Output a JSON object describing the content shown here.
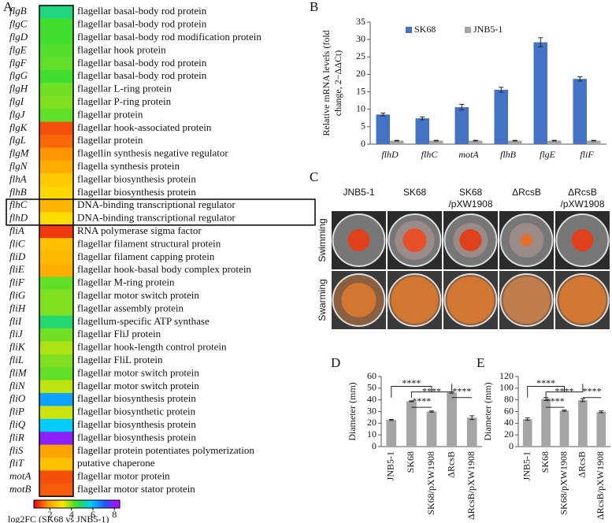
{
  "chart_data": [
    {
      "panel": "A",
      "type": "heatmap",
      "categories": [
        "flgB",
        "flgC",
        "flgD",
        "flgE",
        "flgF",
        "flgG",
        "flgH",
        "flgI",
        "flgJ",
        "flgK",
        "flgL",
        "flgM",
        "flgN",
        "flhA",
        "flhB",
        "flhC",
        "flhD",
        "fliA",
        "fliC",
        "fliD",
        "fliE",
        "fliF",
        "fliG",
        "fliH",
        "fliI",
        "fliJ",
        "fliK",
        "fliL",
        "fliM",
        "fliN",
        "fliO",
        "fliP",
        "fliQ",
        "fliR",
        "fliS",
        "fliT",
        "motA",
        "motB"
      ],
      "descriptions": [
        "flagellar basal-body rod protein",
        "flagellar basal-body rod protein",
        "flagellar basal-body rod modification protein",
        "flagellar hook protein",
        "flagellar basal-body rod protein",
        "flagellar basal-body rod protein",
        "flagellar L-ring protein",
        "flagellar P-ring protein",
        "flagellar protein",
        "flagellar hook-associated protein",
        "flagellar protein",
        "flagellin synthesis negative regulator",
        "flagella synthesis protein",
        "flagellar biosynthesis protein",
        "flagellar biosynthesis protein",
        "DNA-binding transcriptional regulator",
        "DNA-binding transcriptional regulator",
        "RNA polymerase sigma factor",
        "flagellar filament structural protein",
        "flagellar filament capping protein",
        "flagellar hook-basal body complex protein",
        "flagellar M-ring protein",
        "flagellar motor switch protein",
        "flagellar assembly protein",
        "flagellum-specific ATP synthase",
        "flagellar FliJ protein",
        "flagellar hook-length control protein",
        "flagellar FliL protein",
        "flagellar motor switch protein",
        "flagellar motor switch protein",
        "flagellar biosynthesis protein",
        "flagellar biosynthetic protein",
        "flagellar biosynthesis protein",
        "flagellar biosynthesis protein",
        "flagellar protein potentiates polymerization",
        "putative chaperone",
        "flagellar motor protein",
        "flagellar motor stator protein"
      ],
      "values": [
        5.0,
        4.4,
        4.4,
        4.3,
        4.2,
        4.4,
        4.1,
        4.0,
        4.2,
        1.2,
        1.4,
        1.8,
        2.2,
        2.7,
        2.9,
        2.3,
        3.0,
        1.0,
        2.5,
        2.4,
        2.2,
        4.2,
        4.0,
        4.0,
        4.9,
        4.1,
        3.7,
        4.0,
        4.2,
        3.6,
        6.3,
        3.5,
        5.8,
        8.0,
        2.0,
        2.5,
        1.2,
        1.3
      ],
      "colormap": [
        "#e8001a",
        "#ff9900",
        "#ffe600",
        "#33dd33",
        "#00ccff",
        "#2255ff",
        "#cc00ff"
      ],
      "clim": [
        0.5,
        8.5
      ],
      "cticks": [
        2,
        4,
        6,
        8
      ],
      "colorbar_label": "log2FC (SK68 vs JNB5-1)"
    },
    {
      "panel": "B",
      "type": "bar",
      "categories": [
        "flhD",
        "flhC",
        "motA",
        "flhB",
        "flgE",
        "fliF"
      ],
      "series": [
        {
          "name": "SK68",
          "color": "#4472c4",
          "values": [
            8.5,
            7.4,
            10.6,
            15.6,
            29.2,
            18.7
          ],
          "errors": [
            0.4,
            0.4,
            0.8,
            0.7,
            1.3,
            0.6
          ]
        },
        {
          "name": "JNB5-1",
          "color": "#a5a5a5",
          "values": [
            1.0,
            1.0,
            1.0,
            1.0,
            1.0,
            1.0
          ],
          "errors": [
            0.1,
            0.1,
            0.1,
            0.1,
            0.1,
            0.1
          ]
        }
      ],
      "ylim": [
        0,
        35
      ],
      "yticks": [
        0,
        5,
        10,
        15,
        20,
        25,
        30,
        35
      ],
      "ylabel": [
        "Relative mRNA levels (fold",
        "change, 2−ΔΔCt)"
      ],
      "legend": "top"
    },
    {
      "panel": "D",
      "type": "bar",
      "categories": [
        "JNB5-1",
        "SK68",
        "SK68/pXW1908",
        "ΔRcsB",
        "ΔRcsB/pXW1908"
      ],
      "values": [
        22.8,
        38.8,
        30.0,
        46.3,
        24.8
      ],
      "errors": [
        0.5,
        0.4,
        0.5,
        0.6,
        1.6
      ],
      "color": "#a5a5a5",
      "ylim": [
        0,
        60
      ],
      "yticks": [
        0,
        10,
        20,
        30,
        40,
        50,
        60
      ],
      "ylabel": "Diameter (mm)",
      "annotations": [
        "****",
        "****",
        "****",
        "****"
      ]
    },
    {
      "panel": "E",
      "type": "bar",
      "categories": [
        "JNB5-1",
        "SK68",
        "SK68/pXW1908",
        "ΔRcsB",
        "ΔRcsB/pXW1908"
      ],
      "values": [
        47,
        81.5,
        61.5,
        79.5,
        59.5
      ],
      "errors": [
        2,
        2.5,
        1,
        2.5,
        1.5
      ],
      "color": "#a5a5a5",
      "ylim": [
        0,
        120
      ],
      "yticks": [
        0,
        20,
        40,
        60,
        80,
        100,
        120
      ],
      "ylabel": "Diameter (mm)",
      "annotations": [
        "****",
        "****",
        "****",
        "****"
      ]
    }
  ],
  "photo_panel": {
    "panel": "C",
    "columns": [
      [
        "JNB5-1"
      ],
      [
        "SK68"
      ],
      [
        "SK68",
        "/pXW1908"
      ],
      [
        "ΔRcsB"
      ],
      [
        "ΔRcsB",
        "/pXW1908"
      ]
    ],
    "rows": [
      "Swimming",
      "Swarming"
    ]
  }
}
